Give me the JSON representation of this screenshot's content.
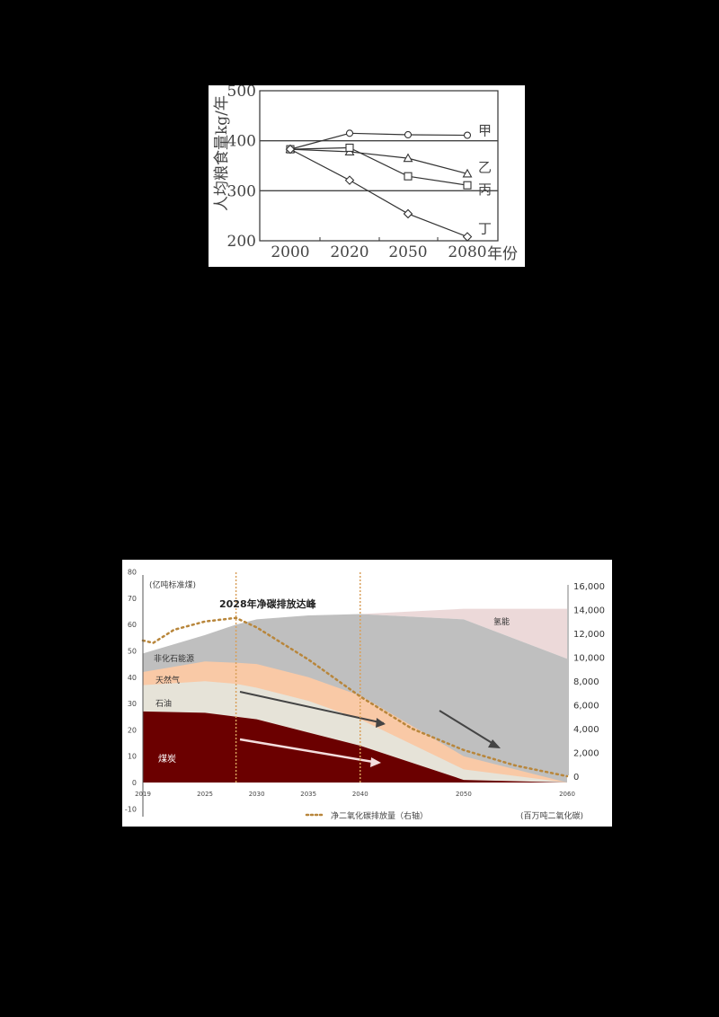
{
  "chart_data": [
    {
      "type": "line",
      "title": "",
      "xlabel": "年份",
      "ylabel": "人均粮食量kg/年",
      "categories": [
        "2000",
        "2020",
        "2050",
        "2080"
      ],
      "ylim": [
        200,
        500
      ],
      "yticks": [
        "500",
        "400",
        "300",
        "200"
      ],
      "gridlines_at": [
        400,
        300
      ],
      "series": [
        {
          "name": "甲",
          "marker": "circle",
          "values": [
            383,
            415,
            412,
            411
          ]
        },
        {
          "name": "乙",
          "marker": "triangle",
          "values": [
            383,
            378,
            365,
            334
          ]
        },
        {
          "name": "丙",
          "marker": "square",
          "values": [
            383,
            386,
            329,
            311
          ]
        },
        {
          "name": "丁",
          "marker": "diamond",
          "values": [
            383,
            321,
            254,
            208
          ]
        }
      ]
    },
    {
      "type": "area",
      "title": "2028年净碳排放达峰",
      "left_axis_label": "(亿吨标准煤)",
      "right_axis_label": "(百万吨二氧化碳)",
      "x": [
        2019,
        2025,
        2028,
        2030,
        2035,
        2040,
        2050,
        2060
      ],
      "xticks": [
        "2019",
        "2025",
        "2030",
        "2035",
        "2040",
        "2050",
        "2060"
      ],
      "ylim_left": [
        -10,
        80
      ],
      "yticks_left": [
        "80",
        "70",
        "60",
        "50",
        "40",
        "30",
        "20",
        "10",
        "0",
        "-10"
      ],
      "ylim_right": [
        0,
        16000
      ],
      "yticks_right": [
        "16,000",
        "14,000",
        "12,000",
        "10,000",
        "8,000",
        "6,000",
        "4,000",
        "2,000",
        "0"
      ],
      "stacked_series_cumulative_top": [
        {
          "name": "煤炭",
          "color": "#6b0000",
          "values": [
            27,
            26.5,
            25,
            24,
            19,
            14,
            1,
            0
          ]
        },
        {
          "name": "石油",
          "color": "#e6e3d8",
          "values": [
            37,
            38.5,
            37.5,
            36,
            31,
            24,
            5,
            0
          ]
        },
        {
          "name": "天然气",
          "color": "#f9c9a6",
          "values": [
            42,
            46,
            45.5,
            45,
            40,
            33,
            10,
            0
          ]
        },
        {
          "name": "非化石能源",
          "color": "#bfbfbf",
          "values": [
            49,
            56,
            60,
            62,
            63.5,
            64,
            62,
            47
          ]
        },
        {
          "name": "氢能",
          "color": "#ecd9d9",
          "values": [
            null,
            null,
            null,
            null,
            null,
            64,
            66,
            66
          ]
        }
      ],
      "line_series": {
        "name": "净二氧化碳排放量（右轴）",
        "style": "dotted",
        "color": "#b8863b",
        "x": [
          2019,
          2020,
          2022,
          2025,
          2028,
          2030,
          2035,
          2040,
          2045,
          2050,
          2055,
          2060
        ],
        "values": [
          11400,
          11200,
          12300,
          13000,
          13300,
          12500,
          9800,
          6700,
          4000,
          2200,
          900,
          0
        ]
      },
      "annotations": [
        {
          "text": "2028年净碳排放达峰",
          "x": 2028
        },
        {
          "text": "氢能"
        },
        {
          "text": "非化石能源"
        },
        {
          "text": "天然气"
        },
        {
          "text": "石油"
        },
        {
          "text": "煤炭"
        }
      ],
      "reference_lines_x": [
        2028,
        2040
      ],
      "legend": {
        "position": "bottom",
        "entries": [
          "净二氧化碳排放量（右轴）"
        ]
      }
    }
  ]
}
